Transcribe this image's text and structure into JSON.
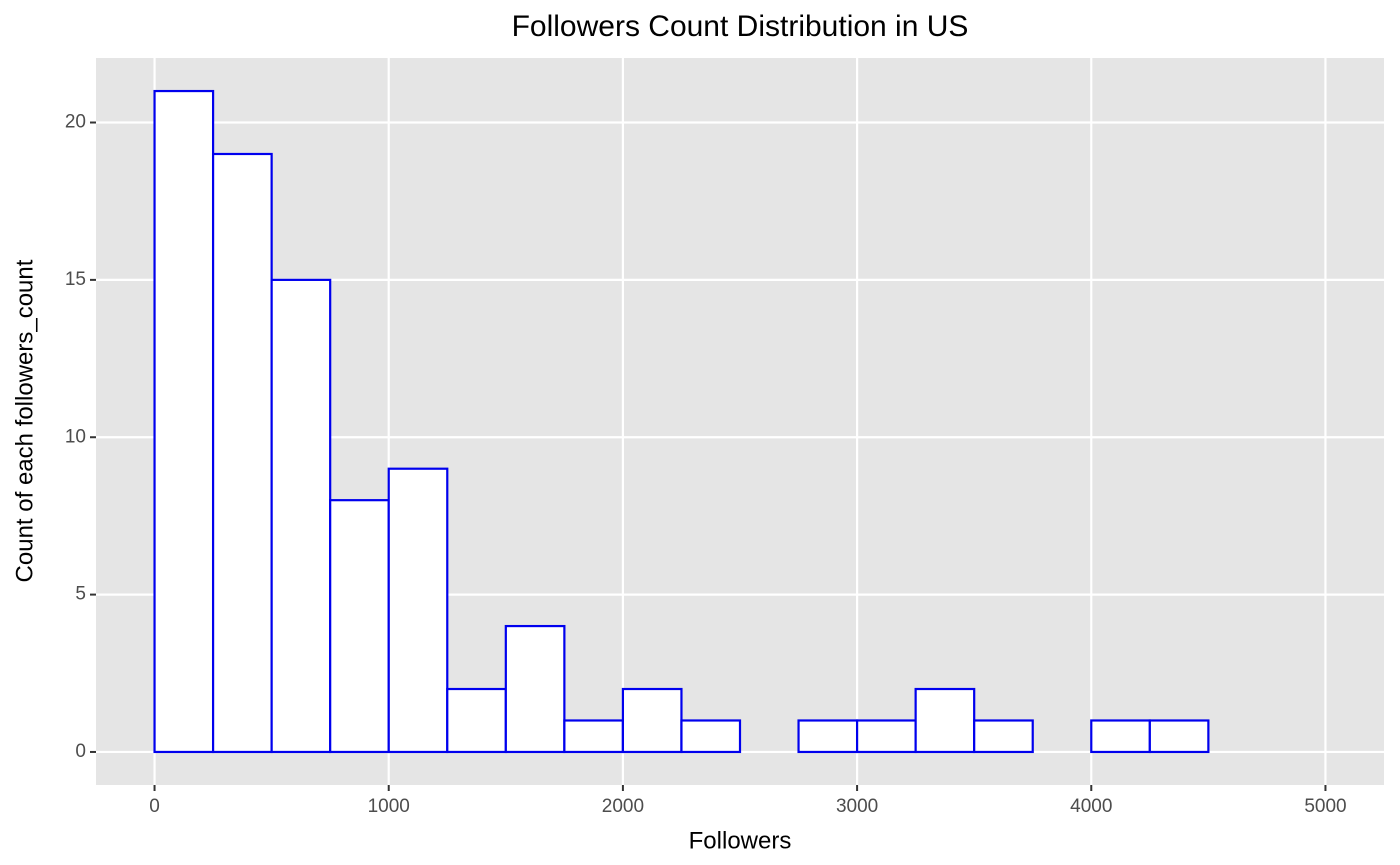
{
  "chart_data": {
    "type": "histogram",
    "title": "Followers Count Distribution in US",
    "x_label": "Followers",
    "y_label": "Count of each followers_count",
    "bins": [
      0,
      250,
      500,
      750,
      1000,
      1250,
      1500,
      1750,
      2000,
      2250,
      2500,
      2750,
      3000,
      3250,
      3500,
      3750,
      4000,
      4250,
      4500,
      4750,
      5000
    ],
    "values": [
      21,
      19,
      15,
      8,
      9,
      2,
      4,
      1,
      2,
      1,
      0,
      1,
      1,
      2,
      1,
      0,
      1,
      1,
      0,
      0
    ],
    "fill": "#ffffff",
    "color": "#0000ee",
    "xlim": [
      -250,
      5250
    ],
    "ylim": [
      -1.05,
      22.05
    ],
    "xticks": [
      0,
      1000,
      2000,
      3000,
      4000,
      5000
    ],
    "yticks": [
      0,
      5,
      10,
      15,
      20
    ],
    "grid": true
  }
}
